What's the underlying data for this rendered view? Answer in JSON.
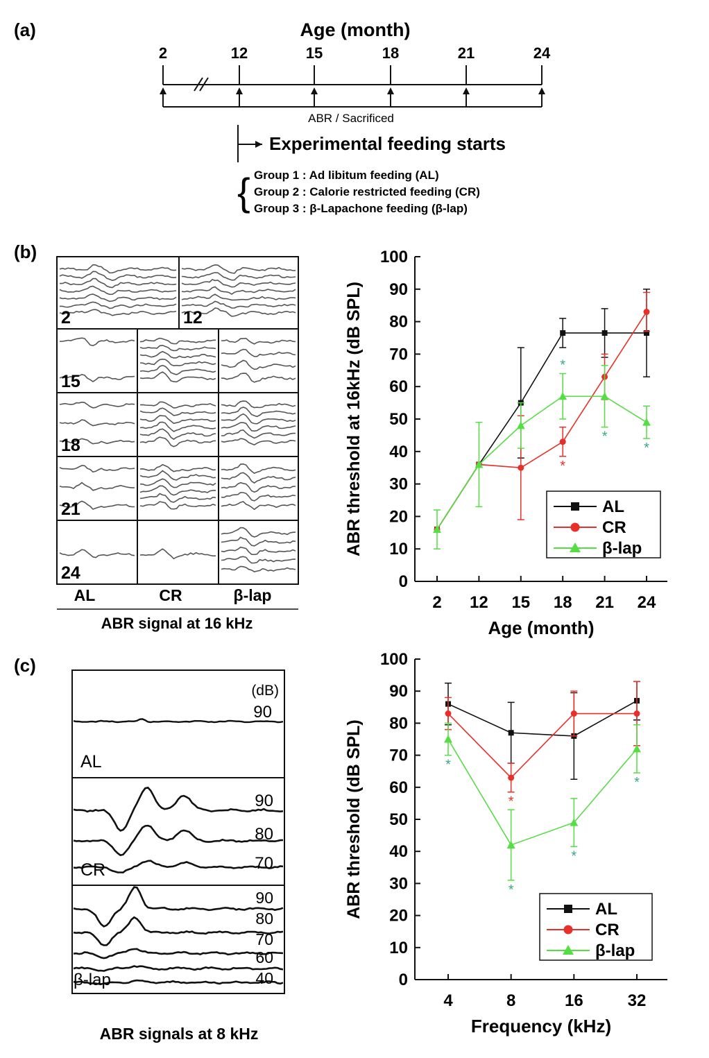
{
  "panel_a": {
    "label": "(a)",
    "title": "Age (month)",
    "ticks": [
      "2",
      "12",
      "15",
      "18",
      "21",
      "24"
    ],
    "sub_label": "ABR / Sacrificed",
    "arrow_text": "Experimental feeding starts",
    "groups": [
      "Group  1  : Ad  libitum feeding (AL)",
      "Group  2  : Calorie restricted feeding (CR)",
      "Group  3  : β-Lapachone feeding (β-lap)"
    ]
  },
  "panel_b": {
    "label": "(b)",
    "grid_ages": [
      "2",
      "12",
      "15",
      "18",
      "21",
      "24"
    ],
    "columns": [
      "AL",
      "CR",
      "β-lap"
    ],
    "caption": "ABR signal at 16 kHz"
  },
  "panel_c": {
    "label": "(c)",
    "unit": "(dB)",
    "groups": [
      {
        "name": "AL",
        "levels": [
          "90"
        ]
      },
      {
        "name": "CR",
        "levels": [
          "90",
          "80",
          "70"
        ]
      },
      {
        "name": "β-lap",
        "levels": [
          "90",
          "80",
          "70",
          "60",
          "40"
        ]
      }
    ],
    "caption": "ABR signals at 8 kHz"
  },
  "colors": {
    "AL": "#111111",
    "CR": "#e8302a",
    "blap": "#55dd44",
    "star_green": "#3aa88a"
  },
  "chart_data": [
    {
      "type": "line",
      "xlabel": "Age (month)",
      "ylabel": "ABR  threshold at 16kHz (dB SPL)",
      "categories": [
        "2",
        "12",
        "15",
        "18",
        "21",
        "24"
      ],
      "ylim": [
        0,
        100
      ],
      "yticks": [
        "0",
        "10",
        "20",
        "30",
        "40",
        "50",
        "60",
        "70",
        "80",
        "90",
        "100"
      ],
      "legend": "bottom-right",
      "series": [
        {
          "name": "AL",
          "color": "#111111",
          "marker": "square",
          "values": [
            16,
            36,
            55,
            76.5,
            76.5,
            76.5
          ],
          "errors": [
            null,
            null,
            17,
            4.5,
            7.5,
            13.5
          ]
        },
        {
          "name": "CR",
          "color": "#e8302a",
          "marker": "circle",
          "values": [
            16,
            36,
            35,
            43,
            63,
            83
          ],
          "errors": [
            null,
            null,
            16,
            4.5,
            7,
            6
          ]
        },
        {
          "name": "β-lap",
          "color": "#55dd44",
          "marker": "triangle",
          "values": [
            16,
            36,
            48,
            57,
            57,
            49
          ],
          "errors": [
            6,
            13,
            7,
            7,
            9.5,
            5
          ]
        }
      ],
      "significance": [
        {
          "x": "18",
          "series": "CR",
          "position": "below",
          "text": "*"
        },
        {
          "x": "18",
          "series": "β-lap",
          "position": "above",
          "text": "*"
        },
        {
          "x": "21",
          "series": "β-lap",
          "position": "below",
          "text": "*"
        },
        {
          "x": "24",
          "series": "β-lap",
          "position": "below",
          "text": "*"
        }
      ]
    },
    {
      "type": "line",
      "xlabel": "Frequency (kHz)",
      "ylabel": "ABR threshold (dB SPL)",
      "categories": [
        "4",
        "8",
        "16",
        "32"
      ],
      "ylim": [
        0,
        100
      ],
      "yticks": [
        "0",
        "10",
        "20",
        "30",
        "40",
        "50",
        "60",
        "70",
        "80",
        "90",
        "100"
      ],
      "legend": "bottom-right",
      "series": [
        {
          "name": "AL",
          "color": "#111111",
          "marker": "square",
          "values": [
            86,
            77,
            76,
            87
          ],
          "errors": [
            6.5,
            9.5,
            13.5,
            6
          ]
        },
        {
          "name": "CR",
          "color": "#e8302a",
          "marker": "circle",
          "values": [
            83,
            63,
            83,
            83
          ],
          "errors": [
            5,
            4.5,
            7,
            10
          ]
        },
        {
          "name": "β-lap",
          "color": "#55dd44",
          "marker": "triangle",
          "values": [
            75,
            42,
            49,
            72
          ],
          "errors": [
            5,
            11,
            7.5,
            7.5
          ]
        }
      ],
      "significance": [
        {
          "x": "4",
          "series": "β-lap",
          "position": "below",
          "text": "*"
        },
        {
          "x": "8",
          "series": "CR",
          "position": "below",
          "text": "*"
        },
        {
          "x": "8",
          "series": "β-lap",
          "position": "below",
          "text": "*"
        },
        {
          "x": "16",
          "series": "β-lap",
          "position": "below",
          "text": "*"
        },
        {
          "x": "32",
          "series": "β-lap",
          "position": "below",
          "text": "*"
        }
      ]
    }
  ]
}
